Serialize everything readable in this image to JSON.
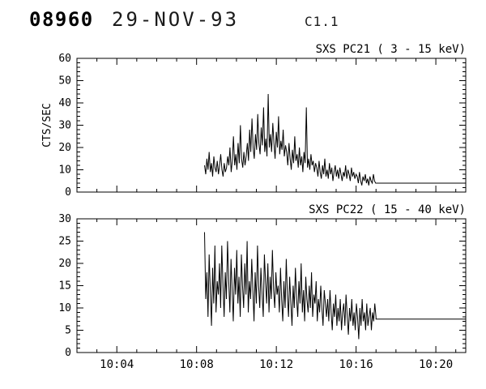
{
  "header": {
    "sequence_number": "08960",
    "date": "29-NOV-93",
    "version": "C1.1"
  },
  "chart_data": [
    {
      "type": "line",
      "title": "SXS PC21 (  3 - 15 keV)",
      "ylabel": "CTS/SEC",
      "xlabel": "",
      "ylim": [
        0,
        60
      ],
      "ytick_step": 10,
      "yminor_step": 2,
      "ytick_labels": [
        "0",
        "10",
        "20",
        "30",
        "40",
        "50",
        "60"
      ],
      "xlim": [
        2.0,
        21.5
      ],
      "xticks": [
        4,
        8,
        12,
        16,
        20
      ],
      "xtick_labels": [
        "10:04",
        "10:08",
        "10:12",
        "10:16",
        "10:20"
      ],
      "xminor_step": 1,
      "show_x_labels": false,
      "grid": false,
      "line_color": "#000000",
      "series": {
        "name": "SXS PC21 counts",
        "t0": 8.4,
        "dt": 0.058,
        "values": [
          12,
          8,
          15,
          10,
          18,
          9,
          13,
          7,
          16,
          11,
          9,
          14,
          8,
          12,
          17,
          10,
          7,
          13,
          9,
          11,
          16,
          12,
          20,
          9,
          14,
          25,
          12,
          17,
          10,
          22,
          13,
          30,
          15,
          11,
          18,
          12,
          16,
          22,
          14,
          28,
          18,
          33,
          20,
          15,
          26,
          19,
          35,
          22,
          17,
          29,
          21,
          38,
          18,
          24,
          16,
          44,
          20,
          26,
          18,
          31,
          22,
          15,
          27,
          20,
          34,
          17,
          23,
          19,
          28,
          16,
          21,
          18,
          12,
          22,
          15,
          10,
          19,
          13,
          25,
          14,
          17,
          11,
          20,
          12,
          16,
          9,
          18,
          13,
          38,
          11,
          15,
          10,
          17,
          12,
          14,
          9,
          13,
          11,
          7,
          14,
          9,
          6,
          12,
          8,
          15,
          7,
          10,
          6,
          13,
          8,
          11,
          5,
          9,
          12,
          7,
          10,
          6,
          11,
          8,
          5,
          9,
          7,
          12,
          6,
          10,
          8,
          5,
          11,
          7,
          9,
          6,
          8,
          7,
          4,
          9,
          5,
          3,
          7,
          5,
          8,
          4,
          6,
          3,
          7,
          5,
          4,
          8,
          5,
          4
        ]
      },
      "tail": {
        "t_start": 17.0,
        "t_end": 21.5,
        "value": 4
      }
    },
    {
      "type": "line",
      "title": "SXS PC22 ( 15 - 40 keV)",
      "ylabel": "",
      "xlabel": "",
      "ylim": [
        0,
        30
      ],
      "ytick_step": 5,
      "yminor_step": 1,
      "ytick_labels": [
        "0",
        "5",
        "10",
        "15",
        "20",
        "25",
        "30"
      ],
      "xlim": [
        2.0,
        21.5
      ],
      "xticks": [
        4,
        8,
        12,
        16,
        20
      ],
      "xtick_labels": [
        "10:04",
        "10:08",
        "10:12",
        "10:16",
        "10:20"
      ],
      "xminor_step": 1,
      "show_x_labels": true,
      "grid": false,
      "line_color": "#000000",
      "series": {
        "name": "SXS PC22 counts",
        "t0": 8.4,
        "dt": 0.0577,
        "values": [
          27,
          12,
          18,
          8,
          22,
          14,
          6,
          19,
          11,
          24,
          9,
          16,
          13,
          20,
          10,
          24,
          15,
          8,
          18,
          12,
          25,
          16,
          9,
          21,
          14,
          7,
          19,
          13,
          23,
          11,
          17,
          8,
          22,
          15,
          10,
          20,
          13,
          25,
          9,
          16,
          12,
          21,
          14,
          7,
          18,
          11,
          24,
          15,
          10,
          19,
          13,
          8,
          22,
          16,
          11,
          20,
          9,
          17,
          12,
          23,
          14,
          10,
          18,
          13,
          15,
          9,
          19,
          12,
          7,
          16,
          10,
          21,
          13,
          8,
          17,
          11,
          6,
          15,
          10,
          19,
          12,
          8,
          16,
          11,
          20,
          9,
          14,
          7,
          17,
          12,
          9,
          15,
          10,
          18,
          8,
          13,
          11,
          16,
          7,
          12,
          9,
          15,
          10,
          6,
          14,
          11,
          8,
          12,
          7,
          14,
          9,
          5,
          11,
          8,
          13,
          6,
          10,
          7,
          12,
          5,
          9,
          11,
          6,
          13,
          8,
          4,
          10,
          7,
          12,
          6,
          9,
          5,
          11,
          8,
          3,
          10,
          6,
          12,
          7,
          9,
          5,
          11,
          6,
          8,
          10,
          5,
          9,
          7,
          11,
          8
        ]
      },
      "tail": {
        "t_start": 17.0,
        "t_end": 21.5,
        "value": 7.5
      }
    }
  ]
}
